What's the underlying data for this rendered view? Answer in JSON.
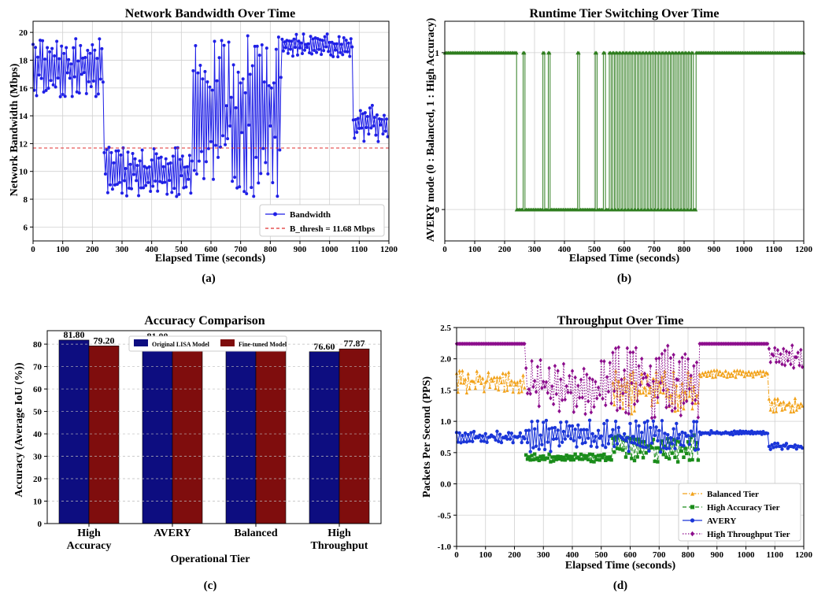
{
  "chart_data": [
    {
      "panel": "(a)",
      "type": "line",
      "title": "Network Bandwidth Over Time",
      "xlabel": "Elapsed Time (seconds)",
      "ylabel": "Network Bandwidth (Mbps)",
      "xlim": [
        0,
        1200
      ],
      "ylim": [
        5,
        20.8
      ],
      "xticks": [
        0,
        100,
        200,
        300,
        400,
        500,
        600,
        700,
        800,
        900,
        1000,
        1100,
        1200
      ],
      "yticks": [
        6,
        8,
        10,
        12,
        14,
        16,
        18,
        20
      ],
      "grid": true,
      "legend": "bottom-right",
      "colors": {
        "series": "#1f1fe6",
        "threshold": "#e03030"
      },
      "series": [
        {
          "name": "Bandwidth",
          "style": "line-markers",
          "segments": [
            {
              "t": [
                0,
                240
              ],
              "low": 15.3,
              "high": 19.6
            },
            {
              "t": [
                240,
                540
              ],
              "low": 8.2,
              "high": 11.8
            },
            {
              "t": [
                540,
                840
              ],
              "low": 8.1,
              "high": 19.8
            },
            {
              "t": [
                840,
                1080
              ],
              "low": 18.2,
              "high": 19.9
            },
            {
              "t": [
                1080,
                1200
              ],
              "low": 12.1,
              "high": 14.9
            }
          ]
        },
        {
          "name": "B_thresh = 11.68 Mbps",
          "style": "dashed",
          "value": 11.68
        }
      ]
    },
    {
      "panel": "(b)",
      "type": "line",
      "title": "Runtime Tier Switching Over Time",
      "xlabel": "Elapsed Time (seconds)",
      "ylabel": "AVERY mode (0 : Balanced, 1 : High Accuracy)",
      "xlim": [
        0,
        1200
      ],
      "ylim": [
        -0.2,
        1.2
      ],
      "xticks": [
        0,
        100,
        200,
        300,
        400,
        500,
        600,
        700,
        800,
        900,
        1000,
        1100,
        1200
      ],
      "yticks": [
        0,
        1
      ],
      "grid": true,
      "colors": {
        "series": "#2e7d1e"
      },
      "high_intervals": [
        [
          0,
          240
        ],
        [
          262,
          268
        ],
        [
          328,
          334
        ],
        [
          346,
          352
        ],
        [
          444,
          450
        ],
        [
          503,
          509
        ],
        [
          530,
          537
        ],
        [
          550,
          556
        ],
        [
          561,
          567
        ],
        [
          572,
          578
        ],
        [
          583,
          589
        ],
        [
          594,
          600
        ],
        [
          605,
          611
        ],
        [
          616,
          622
        ],
        [
          627,
          633
        ],
        [
          638,
          644
        ],
        [
          649,
          655
        ],
        [
          660,
          666
        ],
        [
          671,
          677
        ],
        [
          682,
          688
        ],
        [
          693,
          699
        ],
        [
          704,
          710
        ],
        [
          715,
          721
        ],
        [
          726,
          732
        ],
        [
          737,
          743
        ],
        [
          748,
          754
        ],
        [
          759,
          765
        ],
        [
          770,
          776
        ],
        [
          781,
          787
        ],
        [
          792,
          798
        ],
        [
          803,
          809
        ],
        [
          814,
          820
        ],
        [
          825,
          831
        ],
        [
          840,
          1200
        ]
      ]
    },
    {
      "panel": "(c)",
      "type": "bar",
      "title": "Accuracy Comparison",
      "xlabel": "Operational Tier",
      "ylabel": "Accuracy (Average IoU (%))",
      "ylim": [
        0,
        86
      ],
      "yticks": [
        0,
        10,
        20,
        30,
        40,
        50,
        60,
        70,
        80
      ],
      "grid": true,
      "legend": "top-center",
      "categories": [
        "High\nAccuracy",
        "AVERY",
        "Balanced",
        "High\nThroughput"
      ],
      "series": [
        {
          "name": "Original LISA Model",
          "values": [
            81.8,
            81.0,
            79.6,
            76.6
          ],
          "color": "#0d0d80"
        },
        {
          "name": "Fine-tuned Model",
          "values": [
            79.2,
            78.8,
            78.27,
            77.87
          ],
          "color": "#7f0d0d"
        }
      ],
      "data_labels": [
        [
          "81.80",
          "81.00",
          "79.60",
          "76.60"
        ],
        [
          "79.20",
          "78.80",
          "78.27",
          "77.87"
        ]
      ]
    },
    {
      "panel": "(d)",
      "type": "line",
      "title": "Throughput Over Time",
      "xlabel": "Elapsed Time (seconds)",
      "ylabel": "Packets Per Second (PPS)",
      "xlim": [
        0,
        1200
      ],
      "ylim": [
        -1.0,
        2.5
      ],
      "xticks": [
        0,
        100,
        200,
        300,
        400,
        500,
        600,
        700,
        800,
        900,
        1000,
        1100,
        1200
      ],
      "yticks": [
        -1.0,
        -0.5,
        0.0,
        0.5,
        1.0,
        1.5,
        2.0,
        2.5
      ],
      "grid": true,
      "legend": "bottom-right",
      "series": [
        {
          "name": "Balanced Tier",
          "style": "dash-dot",
          "marker": "triangle",
          "color": "#f2a21a",
          "segments": [
            {
              "t": [
                0,
                240
              ],
              "low": 1.45,
              "high": 1.82
            },
            {
              "t": [
                240,
                540
              ],
              "low": null,
              "high": null
            },
            {
              "t": [
                540,
                840
              ],
              "low": 1.05,
              "high": 1.85
            },
            {
              "t": [
                840,
                1080
              ],
              "low": 1.7,
              "high": 1.82
            },
            {
              "t": [
                1080,
                1200
              ],
              "low": 1.15,
              "high": 1.38
            }
          ]
        },
        {
          "name": "High Accuracy Tier",
          "style": "dashed",
          "marker": "square",
          "color": "#1a8c1a",
          "segments": [
            {
              "t": [
                0,
                240
              ],
              "low": null,
              "high": null
            },
            {
              "t": [
                240,
                540
              ],
              "low": 0.35,
              "high": 0.48
            },
            {
              "t": [
                540,
                840
              ],
              "low": 0.35,
              "high": 0.78
            },
            {
              "t": [
                840,
                1080
              ],
              "low": null,
              "high": null
            },
            {
              "t": [
                1080,
                1200
              ],
              "low": null,
              "high": null
            }
          ]
        },
        {
          "name": "AVERY",
          "style": "solid",
          "marker": "circle",
          "color": "#1a35d8",
          "segments": [
            {
              "t": [
                0,
                240
              ],
              "low": 0.65,
              "high": 0.85
            },
            {
              "t": [
                240,
                540
              ],
              "low": 0.5,
              "high": 1.05
            },
            {
              "t": [
                540,
                840
              ],
              "low": 0.5,
              "high": 1.02
            },
            {
              "t": [
                840,
                1080
              ],
              "low": 0.78,
              "high": 0.85
            },
            {
              "t": [
                1080,
                1200
              ],
              "low": 0.55,
              "high": 0.65
            }
          ]
        },
        {
          "name": "High Throughput Tier",
          "style": "dotted",
          "marker": "diamond",
          "color": "#8c0d8c",
          "segments": [
            {
              "t": [
                0,
                240
              ],
              "low": 2.24,
              "high": 2.24
            },
            {
              "t": [
                240,
                540
              ],
              "low": 1.1,
              "high": 1.98
            },
            {
              "t": [
                540,
                840
              ],
              "low": 1.05,
              "high": 2.24
            },
            {
              "t": [
                840,
                1080
              ],
              "low": 2.24,
              "high": 2.24
            },
            {
              "t": [
                1080,
                1200
              ],
              "low": 1.85,
              "high": 2.22
            }
          ]
        }
      ]
    }
  ],
  "captions": [
    "(a)",
    "(b)",
    "(c)",
    "(d)"
  ]
}
